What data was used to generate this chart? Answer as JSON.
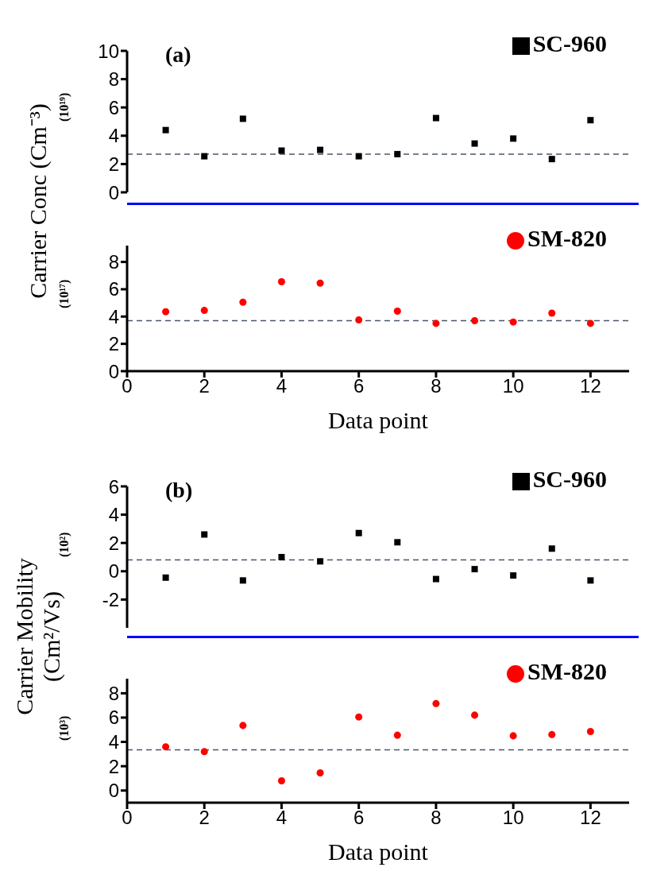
{
  "chart_data": [
    {
      "type": "scatter",
      "ylabel": "(10¹⁹)",
      "annotations": [
        "(a)",
        "Carrier Conc (Cm⁻³)"
      ],
      "x": [
        1,
        2,
        3,
        4,
        5,
        6,
        7,
        8,
        9,
        10,
        11,
        12
      ],
      "xlim": [
        0,
        13
      ],
      "xticks": [
        0,
        2,
        4,
        6,
        8,
        10,
        12
      ],
      "ylim": [
        0,
        10
      ],
      "yticks": [
        0,
        2,
        4,
        6,
        8,
        10
      ],
      "tick_labels": "y",
      "legend": "top right",
      "series": [
        {
          "name": "SC-960",
          "color": "#000000",
          "marker": "square",
          "values": [
            4.4,
            2.55,
            5.2,
            2.95,
            3.0,
            2.55,
            2.7,
            5.25,
            3.45,
            3.8,
            2.35,
            5.1
          ]
        }
      ],
      "ref_lines": [
        {
          "axis": "y",
          "value": 2.7,
          "color": "#4a5568",
          "line_style": "dashed"
        }
      ]
    },
    {
      "type": "scatter",
      "ylabel": "(10¹⁷)",
      "xlabel": "Data point",
      "x": [
        1,
        2,
        3,
        4,
        5,
        6,
        7,
        8,
        9,
        10,
        11,
        12
      ],
      "xlim": [
        0,
        13
      ],
      "xticks": [
        0,
        2,
        4,
        6,
        8,
        10,
        12
      ],
      "ylim": [
        0,
        9.2
      ],
      "yticks": [
        0,
        2,
        4,
        6,
        8
      ],
      "legend": "top right",
      "series": [
        {
          "name": "SM-820",
          "color": "#ff0000",
          "marker": "circle",
          "values": [
            4.35,
            4.45,
            5.05,
            6.55,
            6.45,
            3.75,
            4.4,
            3.5,
            3.7,
            3.6,
            4.25,
            3.5
          ]
        }
      ],
      "ref_lines": [
        {
          "axis": "y",
          "value": 3.7,
          "color": "#4a5568",
          "line_style": "dashed"
        }
      ]
    },
    {
      "type": "scatter",
      "ylabel": "(10²)",
      "annotations": [
        "(b)",
        "Carrier Mobility (Cm²/Vs)"
      ],
      "x": [
        1,
        2,
        3,
        4,
        5,
        6,
        7,
        8,
        9,
        10,
        11,
        12
      ],
      "xlim": [
        0,
        13
      ],
      "xticks": [
        0,
        2,
        4,
        6,
        8,
        10,
        12
      ],
      "ylim": [
        -4,
        6
      ],
      "yticks": [
        -2,
        0,
        2,
        4,
        6
      ],
      "tick_labels": "y",
      "legend": "top right",
      "series": [
        {
          "name": "SC-960",
          "color": "#000000",
          "marker": "square",
          "values": [
            -0.45,
            2.6,
            -0.65,
            1.0,
            0.7,
            2.7,
            2.05,
            -0.55,
            0.15,
            -0.3,
            1.6,
            -0.65
          ]
        }
      ],
      "ref_lines": [
        {
          "axis": "y",
          "value": 0.8,
          "color": "#4a5568",
          "line_style": "dashed"
        }
      ]
    },
    {
      "type": "scatter",
      "ylabel": "(10³)",
      "xlabel": "Data point",
      "x": [
        1,
        2,
        3,
        4,
        5,
        6,
        7,
        8,
        9,
        10,
        11,
        12
      ],
      "xlim": [
        0,
        13
      ],
      "xticks": [
        0,
        2,
        4,
        6,
        8,
        10,
        12
      ],
      "ylim": [
        -1,
        9.2
      ],
      "yticks": [
        0,
        2,
        4,
        6,
        8
      ],
      "legend": "top right",
      "series": [
        {
          "name": "SM-820",
          "color": "#ff0000",
          "marker": "circle",
          "values": [
            3.6,
            3.2,
            5.35,
            0.8,
            1.45,
            6.05,
            4.55,
            7.15,
            6.2,
            4.5,
            4.6,
            4.85
          ]
        }
      ],
      "ref_lines": [
        {
          "axis": "y",
          "value": 3.35,
          "color": "#4a5568",
          "line_style": "dashed"
        }
      ]
    }
  ]
}
